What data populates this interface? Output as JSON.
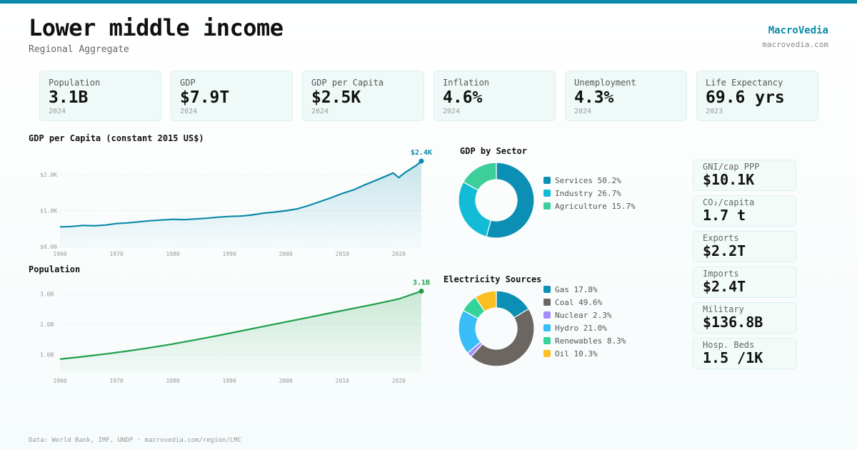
{
  "header": {
    "title": "Lower middle income",
    "subtitle": "Regional Aggregate",
    "brand": "MacroVedia",
    "brand_url": "macrovedia.com"
  },
  "kpis": [
    {
      "label": "Population",
      "value": "3.1B",
      "year": "2024"
    },
    {
      "label": "GDP",
      "value": "$7.9T",
      "year": "2024"
    },
    {
      "label": "GDP per Capita",
      "value": "$2.5K",
      "year": "2024"
    },
    {
      "label": "Inflation",
      "value": "4.6%",
      "year": "2024"
    },
    {
      "label": "Unemployment",
      "value": "4.3%",
      "year": "2024"
    },
    {
      "label": "Life Expectancy",
      "value": "69.6 yrs",
      "year": "2023"
    }
  ],
  "side_stats": [
    {
      "label": "GNI/cap PPP",
      "value": "$10.1K"
    },
    {
      "label": "CO₂/capita",
      "value": "1.7 t"
    },
    {
      "label": "Exports",
      "value": "$2.2T"
    },
    {
      "label": "Imports",
      "value": "$2.4T"
    },
    {
      "label": "Military",
      "value": "$136.8B"
    },
    {
      "label": "Hosp. Beds",
      "value": "1.5 /1K"
    }
  ],
  "footer": "Data: World Bank, IMF, UNDP · macrovedia.com/region/LMC",
  "colors": {
    "accent": "#0b89a8",
    "population_line": "#1e9e4a"
  },
  "chart_data": [
    {
      "type": "area",
      "title": "GDP per Capita (constant 2015 US$)",
      "end_label": "$2.4K",
      "x": [
        1960,
        1962,
        1964,
        1966,
        1968,
        1970,
        1972,
        1974,
        1976,
        1978,
        1980,
        1982,
        1984,
        1986,
        1988,
        1990,
        1992,
        1994,
        1996,
        1998,
        2000,
        2002,
        2004,
        2006,
        2008,
        2010,
        2012,
        2014,
        2016,
        2018,
        2019,
        2020,
        2021,
        2022,
        2023,
        2024
      ],
      "values": [
        550,
        560,
        590,
        580,
        600,
        640,
        660,
        690,
        720,
        740,
        760,
        750,
        770,
        790,
        820,
        840,
        850,
        880,
        930,
        960,
        1000,
        1050,
        1140,
        1250,
        1360,
        1480,
        1580,
        1720,
        1850,
        1980,
        2050,
        1920,
        2050,
        2150,
        2250,
        2380
      ],
      "xticks": [
        "1960",
        "1970",
        "1980",
        "1990",
        "2000",
        "2010",
        "2020"
      ],
      "yticks": [
        "$0.00",
        "$1.0K",
        "$2.0K"
      ],
      "ylim": [
        0,
        2500
      ],
      "grid": true
    },
    {
      "type": "area",
      "title": "Population",
      "end_label": "3.1B",
      "x": [
        1960,
        1964,
        1968,
        1972,
        1976,
        1980,
        1984,
        1988,
        1992,
        1996,
        2000,
        2004,
        2008,
        2012,
        2016,
        2020,
        2024
      ],
      "values": [
        0.85,
        0.93,
        1.02,
        1.12,
        1.23,
        1.35,
        1.49,
        1.63,
        1.78,
        1.93,
        2.08,
        2.23,
        2.38,
        2.53,
        2.68,
        2.84,
        3.1
      ],
      "xticks": [
        "1960",
        "1970",
        "1980",
        "1990",
        "2000",
        "2010",
        "2020"
      ],
      "yticks": [
        "1.0B",
        "2.0B",
        "3.0B"
      ],
      "ylim": [
        0.4,
        3.3
      ],
      "grid": true
    },
    {
      "type": "pie",
      "title": "GDP by Sector",
      "labels": [
        "Services 50.2%",
        "Industry 26.7%",
        "Agriculture 15.7%"
      ],
      "values": [
        50.2,
        26.7,
        15.7
      ],
      "colors": [
        "#0b8fb4",
        "#13bcd6",
        "#3ccf9a"
      ]
    },
    {
      "type": "pie",
      "title": "Electricity Sources",
      "labels": [
        "Gas 17.8%",
        "Coal 49.6%",
        "Nuclear 2.3%",
        "Hydro 21.0%",
        "Renewables 8.3%",
        "Oil 10.3%"
      ],
      "values": [
        17.8,
        49.6,
        2.3,
        21.0,
        8.3,
        10.3
      ],
      "colors": [
        "#0b8fb4",
        "#6b6662",
        "#a78bfa",
        "#38bdf8",
        "#34d399",
        "#fbbf24"
      ]
    }
  ]
}
